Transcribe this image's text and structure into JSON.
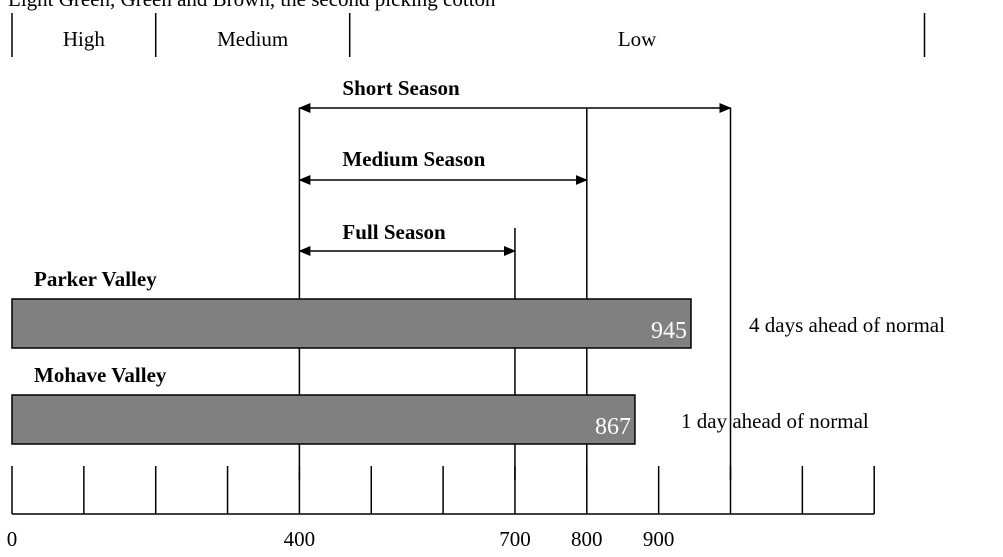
{
  "caption": "Light Green, Green and Brown, the second picking cotton",
  "chart_data": {
    "type": "bar",
    "orientation": "horizontal",
    "xlim": [
      0,
      1200
    ],
    "grid": false,
    "legend": "none",
    "x_ticks": [
      0,
      100,
      200,
      300,
      400,
      500,
      600,
      700,
      800,
      900,
      1000,
      1100,
      1200
    ],
    "x_tick_labels": [
      {
        "value": 0,
        "label": "0"
      },
      {
        "value": 400,
        "label": "400"
      },
      {
        "value": 700,
        "label": "700"
      },
      {
        "value": 800,
        "label": "800"
      },
      {
        "value": 900,
        "label": "900"
      }
    ],
    "zones": [
      {
        "label": "High",
        "start": 0,
        "end": 200
      },
      {
        "label": "Medium",
        "start": 200,
        "end": 470
      },
      {
        "label": "Low",
        "start": 470,
        "end": 1270
      }
    ],
    "seasons": [
      {
        "label": "Short Season",
        "start": 400,
        "end": 1000
      },
      {
        "label": "Medium Season",
        "start": 400,
        "end": 800
      },
      {
        "label": "Full Season",
        "start": 400,
        "end": 700
      }
    ],
    "bars": [
      {
        "category": "Parker Valley",
        "value": 945,
        "value_label": "945",
        "annotation": "4 days ahead of normal"
      },
      {
        "category": "Mohave Valley",
        "value": 867,
        "value_label": "867",
        "annotation": "1 day ahead of normal"
      }
    ],
    "bar_color": "#808080"
  }
}
